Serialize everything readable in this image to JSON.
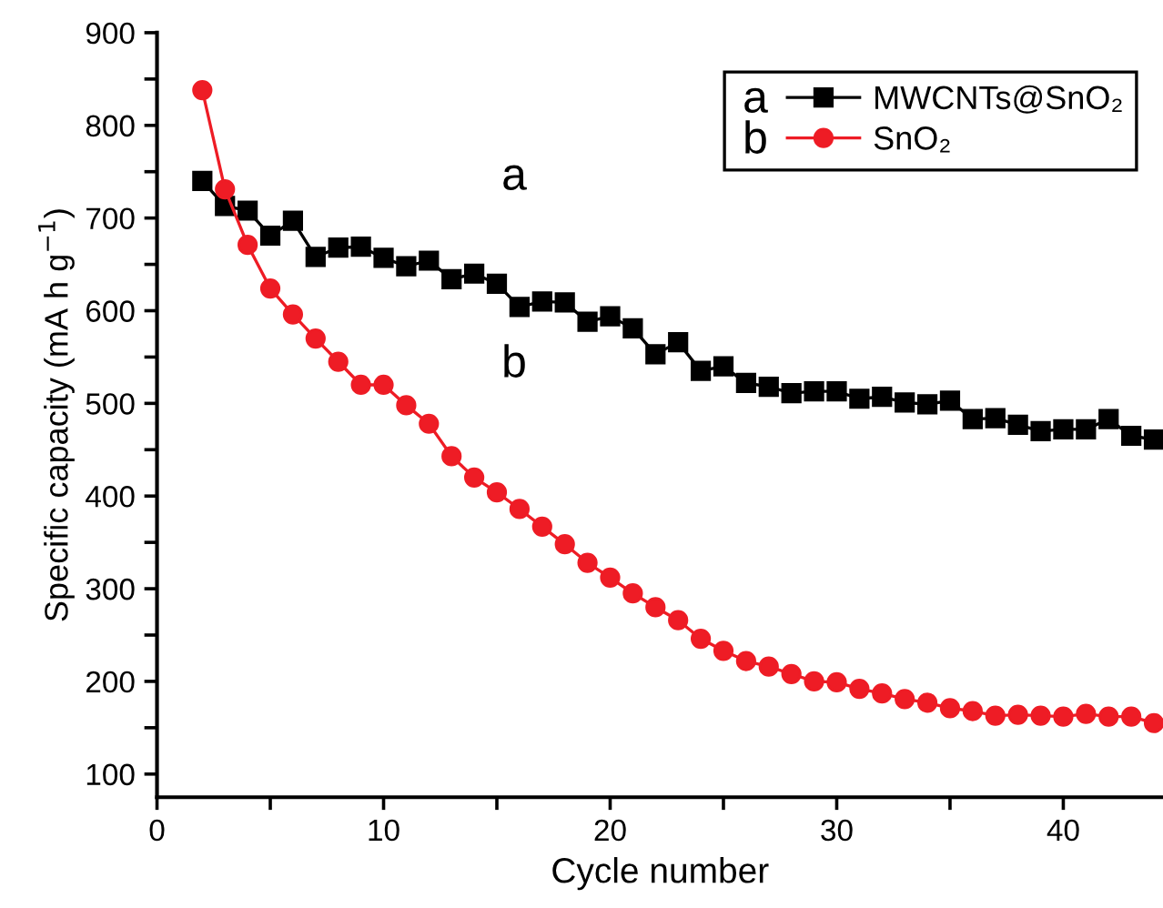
{
  "chart_data": {
    "type": "line",
    "xlabel": "Cycle number",
    "ylabel": "Specific capacity (mA h g$^{−1}$)",
    "x": [
      2,
      3,
      4,
      5,
      6,
      7,
      8,
      9,
      10,
      11,
      12,
      13,
      14,
      15,
      16,
      17,
      18,
      19,
      20,
      21,
      22,
      23,
      24,
      25,
      26,
      27,
      28,
      29,
      30,
      31,
      32,
      33,
      34,
      35,
      36,
      37,
      38,
      39,
      40,
      41,
      42,
      43,
      44
    ],
    "series": [
      {
        "name": "MWCNTs@SnO₂",
        "color": "#000000",
        "marker": "square",
        "values": [
          740,
          713,
          708,
          681,
          697,
          658,
          668,
          669,
          657,
          648,
          654,
          634,
          640,
          629,
          604,
          610,
          609,
          588,
          594,
          581,
          553,
          566,
          535,
          540,
          522,
          518,
          511,
          513,
          513,
          505,
          507,
          501,
          499,
          503,
          483,
          484,
          477,
          470,
          472,
          472,
          483,
          465,
          461
        ]
      },
      {
        "name": "SnO₂",
        "color": "#ee1c25",
        "marker": "circle",
        "values": [
          838,
          731,
          671,
          624,
          596,
          570,
          545,
          520,
          520,
          498,
          478,
          443,
          420,
          404,
          386,
          367,
          348,
          328,
          312,
          295,
          280,
          266,
          246,
          233,
          222,
          216,
          208,
          200,
          199,
          192,
          187,
          181,
          177,
          171,
          168,
          163,
          164,
          163,
          162,
          165,
          162,
          162,
          155
        ]
      }
    ],
    "xlim": [
      0,
      44.4
    ],
    "ylim": [
      75,
      900
    ],
    "xticks": [
      0,
      {
        "value": 5,
        "label": null
      },
      10,
      {
        "value": 15,
        "label": null
      },
      20,
      {
        "value": 25,
        "label": null
      },
      30,
      {
        "value": 35,
        "label": null
      },
      40
    ],
    "yticks": [
      100,
      {
        "value": 150,
        "label": null
      },
      200,
      {
        "value": 250,
        "label": null
      },
      300,
      {
        "value": 350,
        "label": null
      },
      400,
      {
        "value": 450,
        "label": null
      },
      500,
      {
        "value": 550,
        "label": null
      },
      600,
      {
        "value": 650,
        "label": null
      },
      700,
      {
        "value": 750,
        "label": null
      },
      800,
      {
        "value": 850,
        "label": null
      },
      900
    ],
    "grid": false,
    "legend": "top right",
    "line_style": "solid",
    "annotations": [
      "a",
      "b",
      "a",
      "b"
    ]
  }
}
